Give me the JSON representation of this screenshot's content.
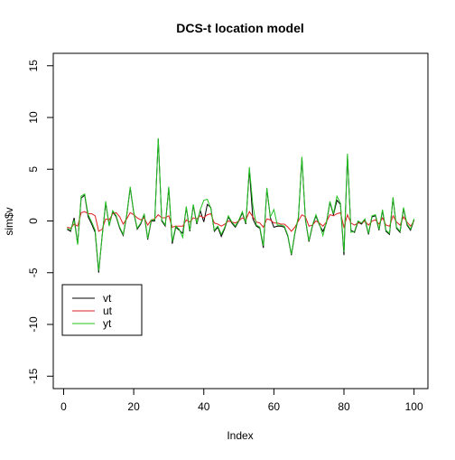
{
  "chart_data": {
    "type": "line",
    "title": "DCS-t location model",
    "xlabel": "Index",
    "ylabel": "sim$v",
    "xlim": [
      1,
      100
    ],
    "ylim": [
      -15,
      15
    ],
    "x_ticks": [
      0,
      20,
      40,
      60,
      80,
      100
    ],
    "x_tick_labels": [
      "0",
      "20",
      "40",
      "60",
      "80",
      "100"
    ],
    "y_ticks": [
      -15,
      -10,
      -5,
      0,
      5,
      10,
      15
    ],
    "y_tick_labels": [
      "-15",
      "-10",
      "-5",
      "0",
      "5",
      "10",
      "15"
    ],
    "grid": false,
    "legend_position": "bottom-left",
    "series": [
      {
        "name": "vt",
        "color": "#000000",
        "values": [
          -0.8,
          -1.0,
          0.3,
          -2.2,
          2.2,
          2.5,
          0.4,
          -0.3,
          -1.1,
          -5.0,
          -1.4,
          1.7,
          -0.4,
          0.9,
          0.4,
          -0.7,
          -1.4,
          0.5,
          3.2,
          0.8,
          -0.8,
          -0.3,
          0.6,
          -1.8,
          0.0,
          0.0,
          7.9,
          0.0,
          -0.5,
          3.2,
          -2.2,
          -0.6,
          -0.9,
          -1.2,
          1.3,
          -1.0,
          1.5,
          -0.3,
          1.0,
          -0.1,
          1.6,
          1.3,
          -1.0,
          -0.6,
          -1.5,
          -0.7,
          0.4,
          -0.2,
          -0.6,
          0.0,
          0.8,
          -0.3,
          5.0,
          0.2,
          -0.5,
          -0.7,
          -2.6,
          3.1,
          0.3,
          -0.6,
          -0.5,
          -0.5,
          -0.6,
          -1.5,
          -3.3,
          -1.2,
          0.3,
          6.1,
          0.1,
          -2.0,
          -0.5,
          0.5,
          -0.4,
          -1.0,
          -0.2,
          1.8,
          0.6,
          2.0,
          1.6,
          -3.3,
          6.3,
          -0.9,
          -1.1,
          -0.1,
          -0.3,
          0.1,
          -1.3,
          0.4,
          0.5,
          -0.9,
          1.0,
          -1.0,
          -1.3,
          2.2,
          -0.7,
          -1.1,
          1.2,
          -0.4,
          -0.9,
          0.1
        ]
      },
      {
        "name": "ut",
        "color": "#df2020",
        "values": [
          -0.6,
          -0.7,
          -0.3,
          -0.5,
          0.8,
          0.9,
          0.7,
          0.7,
          0.5,
          -1.0,
          -0.8,
          0.2,
          0.1,
          0.7,
          0.8,
          0.4,
          -0.3,
          0.2,
          0.8,
          0.6,
          0.3,
          0.1,
          0.3,
          -0.4,
          0.1,
          0.2,
          0.6,
          0.3,
          0.3,
          0.5,
          -0.6,
          -0.5,
          -0.5,
          -0.5,
          0.1,
          -0.1,
          0.3,
          0.2,
          0.5,
          0.3,
          0.6,
          0.7,
          -0.2,
          -0.3,
          -0.5,
          -0.3,
          0.0,
          -0.1,
          -0.2,
          0.0,
          0.3,
          0.1,
          0.9,
          0.4,
          -0.1,
          -0.2,
          -0.6,
          0.2,
          0.1,
          -0.2,
          -0.2,
          -0.3,
          -0.3,
          -0.6,
          -1.0,
          -0.6,
          0.0,
          0.6,
          0.4,
          -0.5,
          -0.4,
          0.0,
          -0.2,
          -0.5,
          -0.1,
          0.6,
          0.5,
          0.7,
          0.8,
          -0.6,
          0.6,
          -0.2,
          -0.4,
          -0.2,
          -0.2,
          0.0,
          -0.4,
          0.0,
          0.1,
          -0.3,
          0.3,
          -0.4,
          -0.5,
          0.5,
          -0.1,
          -0.4,
          0.4,
          -0.1,
          -0.5,
          0.0
        ]
      },
      {
        "name": "yt",
        "color": "#22c022",
        "values": [
          -0.7,
          -0.9,
          0.1,
          -2.3,
          2.4,
          2.6,
          0.6,
          -0.1,
          -0.9,
          -4.8,
          -1.5,
          1.9,
          -0.5,
          1.0,
          0.5,
          -0.6,
          -1.3,
          0.6,
          3.3,
          0.9,
          -0.7,
          -0.2,
          0.7,
          -1.7,
          0.1,
          0.1,
          8.0,
          0.1,
          -0.4,
          3.3,
          -2.0,
          -0.5,
          -0.8,
          -1.6,
          1.4,
          -0.9,
          1.6,
          -0.2,
          1.1,
          2.0,
          2.1,
          1.2,
          -0.9,
          -0.5,
          -1.3,
          -0.6,
          0.5,
          -0.1,
          -0.5,
          0.1,
          0.9,
          -0.2,
          5.2,
          1.5,
          -0.4,
          -0.6,
          -2.4,
          3.2,
          0.4,
          1.1,
          -0.4,
          -0.4,
          -0.5,
          -1.4,
          -3.2,
          -1.1,
          0.4,
          6.2,
          0.2,
          -1.9,
          -0.4,
          0.6,
          -0.3,
          -1.4,
          -0.1,
          1.9,
          0.7,
          2.4,
          1.7,
          -3.0,
          6.5,
          -1.1,
          -1.0,
          0.0,
          -0.2,
          0.2,
          -1.2,
          0.5,
          0.6,
          -0.8,
          1.1,
          -0.9,
          -1.2,
          2.3,
          -0.6,
          -1.0,
          1.3,
          -0.3,
          -0.8,
          0.2
        ]
      }
    ]
  }
}
